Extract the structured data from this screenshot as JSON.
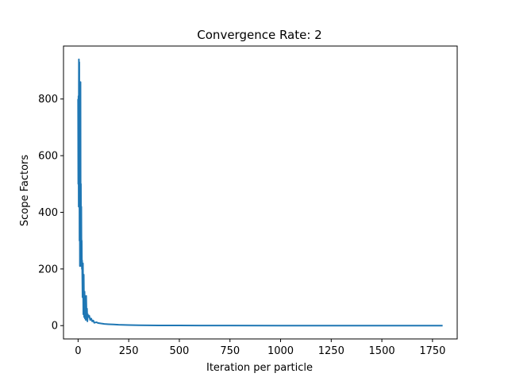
{
  "chart_data": {
    "type": "line",
    "title": "Convergence Rate: 2",
    "xlabel": "Iteration per particle",
    "ylabel": "Scope Factors",
    "xlim": [
      -72,
      1872
    ],
    "ylim": [
      -47,
      987
    ],
    "xticks": [
      0,
      250,
      500,
      750,
      1000,
      1250,
      1500,
      1750
    ],
    "yticks": [
      0,
      200,
      400,
      600,
      800
    ],
    "grid": false,
    "line_color": "#1f77b4",
    "series": [
      {
        "x": [
          0,
          1,
          2,
          3,
          4,
          5,
          6,
          7,
          8,
          9,
          10,
          11,
          12,
          13,
          14,
          15,
          16,
          17,
          18,
          19,
          20,
          22,
          24,
          26,
          28,
          30,
          32,
          34,
          36,
          38,
          40,
          42,
          44,
          46,
          48,
          50,
          55,
          60,
          65,
          70,
          75,
          80,
          90,
          100,
          110,
          120,
          130,
          150,
          175,
          200,
          250,
          300,
          350,
          400,
          500,
          600,
          750,
          1000,
          1250,
          1500,
          1800
        ],
        "y": [
          800,
          500,
          810,
          420,
          940,
          600,
          930,
          300,
          840,
          210,
          780,
          400,
          860,
          230,
          500,
          210,
          420,
          220,
          300,
          200,
          230,
          100,
          220,
          40,
          180,
          30,
          120,
          25,
          90,
          20,
          105,
          30,
          60,
          15,
          40,
          30,
          35,
          20,
          25,
          15,
          18,
          10,
          12,
          9,
          8,
          7,
          6,
          5,
          4,
          3,
          2,
          1.5,
          1,
          0.8,
          0.5,
          0.3,
          0.2,
          0.1,
          0.1,
          0.1,
          0.1
        ]
      }
    ]
  }
}
